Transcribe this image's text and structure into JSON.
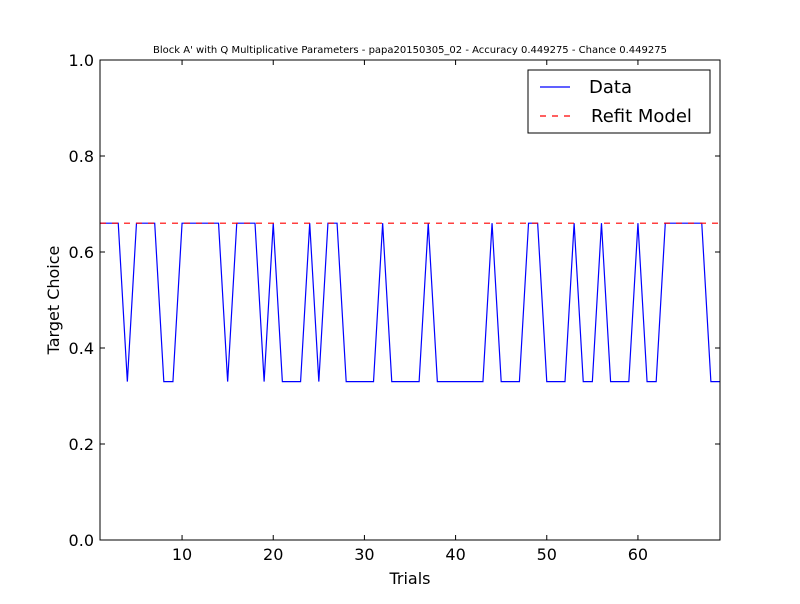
{
  "chart_data": {
    "type": "line",
    "title": "Block A' with Q Multiplicative Parameters - papa20150305_02 - Accuracy 0.449275 - Chance 0.449275",
    "xlabel": "Trials",
    "ylabel": "Target Choice",
    "xlim": [
      1,
      69
    ],
    "ylim": [
      0.0,
      1.0
    ],
    "xticks": [
      10,
      20,
      30,
      40,
      50,
      60
    ],
    "yticks": [
      0.0,
      0.2,
      0.4,
      0.6,
      0.8,
      1.0
    ],
    "ytick_labels": [
      "0.0",
      "0.2",
      "0.4",
      "0.6",
      "0.8",
      "1.0"
    ],
    "grid": false,
    "legend_position": "top-right",
    "series": [
      {
        "name": "Data",
        "color": "#0000ff",
        "linestyle": "solid",
        "x": [
          1,
          2,
          3,
          4,
          5,
          6,
          7,
          8,
          9,
          10,
          11,
          12,
          13,
          14,
          15,
          16,
          17,
          18,
          19,
          20,
          21,
          22,
          23,
          24,
          25,
          26,
          27,
          28,
          29,
          30,
          31,
          32,
          33,
          34,
          35,
          36,
          37,
          38,
          39,
          40,
          41,
          42,
          43,
          44,
          45,
          46,
          47,
          48,
          49,
          50,
          51,
          52,
          53,
          54,
          55,
          56,
          57,
          58,
          59,
          60,
          61,
          62,
          63,
          64,
          65,
          66,
          67,
          68,
          69
        ],
        "y": [
          0.66,
          0.66,
          0.66,
          0.33,
          0.66,
          0.66,
          0.66,
          0.33,
          0.33,
          0.66,
          0.66,
          0.66,
          0.66,
          0.66,
          0.33,
          0.66,
          0.66,
          0.66,
          0.33,
          0.66,
          0.33,
          0.33,
          0.33,
          0.66,
          0.33,
          0.66,
          0.66,
          0.33,
          0.33,
          0.33,
          0.33,
          0.66,
          0.33,
          0.33,
          0.33,
          0.33,
          0.66,
          0.33,
          0.33,
          0.33,
          0.33,
          0.33,
          0.33,
          0.66,
          0.33,
          0.33,
          0.33,
          0.66,
          0.66,
          0.33,
          0.33,
          0.33,
          0.66,
          0.33,
          0.33,
          0.66,
          0.33,
          0.33,
          0.33,
          0.66,
          0.33,
          0.33,
          0.66,
          0.66,
          0.66,
          0.66,
          0.66,
          0.33,
          0.33
        ]
      },
      {
        "name": "Refit Model",
        "color": "#ff0000",
        "linestyle": "dashed",
        "x": [
          1,
          69
        ],
        "y": [
          0.66,
          0.66
        ]
      }
    ]
  }
}
